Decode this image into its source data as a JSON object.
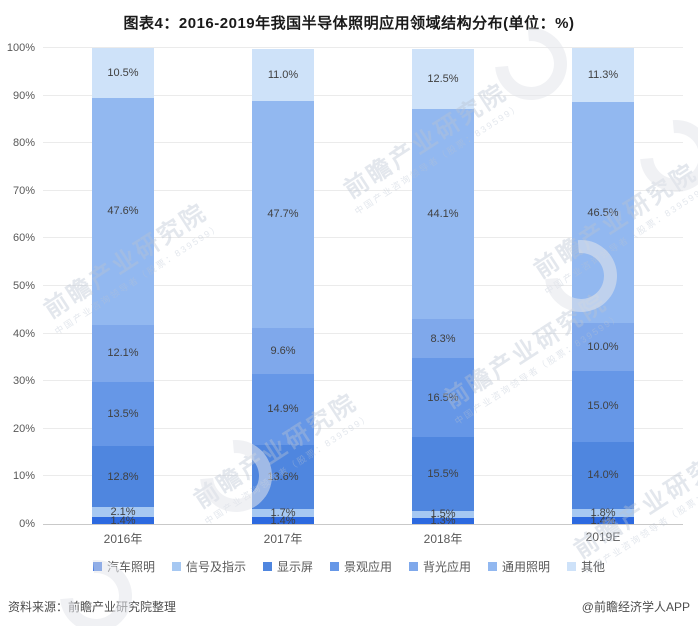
{
  "title": "图表4：2016-2019年我国半导体照明应用领域结构分布(单位：%)",
  "footer": {
    "source": "资料来源：前瞻产业研究院整理",
    "credit": "@前瞻经济学人APP"
  },
  "watermark": {
    "main": "前瞻产业研究院",
    "sub": "中国产业咨询领导者（股票：839599）"
  },
  "chart_data": {
    "type": "bar",
    "stacked": true,
    "unit": "%",
    "title": "图表4：2016-2019年我国半导体照明应用领域结构分布(单位：%)",
    "categories": [
      "2016年",
      "2017年",
      "2018年",
      "2019E"
    ],
    "series": [
      {
        "name": "汽车照明",
        "color": "#2c69e0",
        "values": [
          1.4,
          1.4,
          1.3,
          1.4
        ]
      },
      {
        "name": "信号及指示",
        "color": "#a6c8f2",
        "values": [
          2.1,
          1.7,
          1.5,
          1.8
        ]
      },
      {
        "name": "显示屏",
        "color": "#4f86df",
        "values": [
          12.8,
          13.6,
          15.5,
          14.0
        ]
      },
      {
        "name": "景观应用",
        "color": "#6697e7",
        "values": [
          13.5,
          14.9,
          16.5,
          15.0
        ]
      },
      {
        "name": "背光应用",
        "color": "#7fa8eb",
        "values": [
          12.1,
          9.6,
          8.3,
          10.0
        ]
      },
      {
        "name": "通用照明",
        "color": "#92b8f0",
        "values": [
          47.6,
          47.7,
          44.1,
          46.5
        ]
      },
      {
        "name": "其他",
        "color": "#cee2f9",
        "values": [
          10.5,
          11.0,
          12.5,
          11.3
        ]
      }
    ],
    "ylim": [
      0,
      100
    ],
    "yticks": [
      "0%",
      "10%",
      "20%",
      "30%",
      "40%",
      "50%",
      "60%",
      "70%",
      "80%",
      "90%",
      "100%"
    ],
    "grid": true,
    "legend_position": "bottom"
  }
}
